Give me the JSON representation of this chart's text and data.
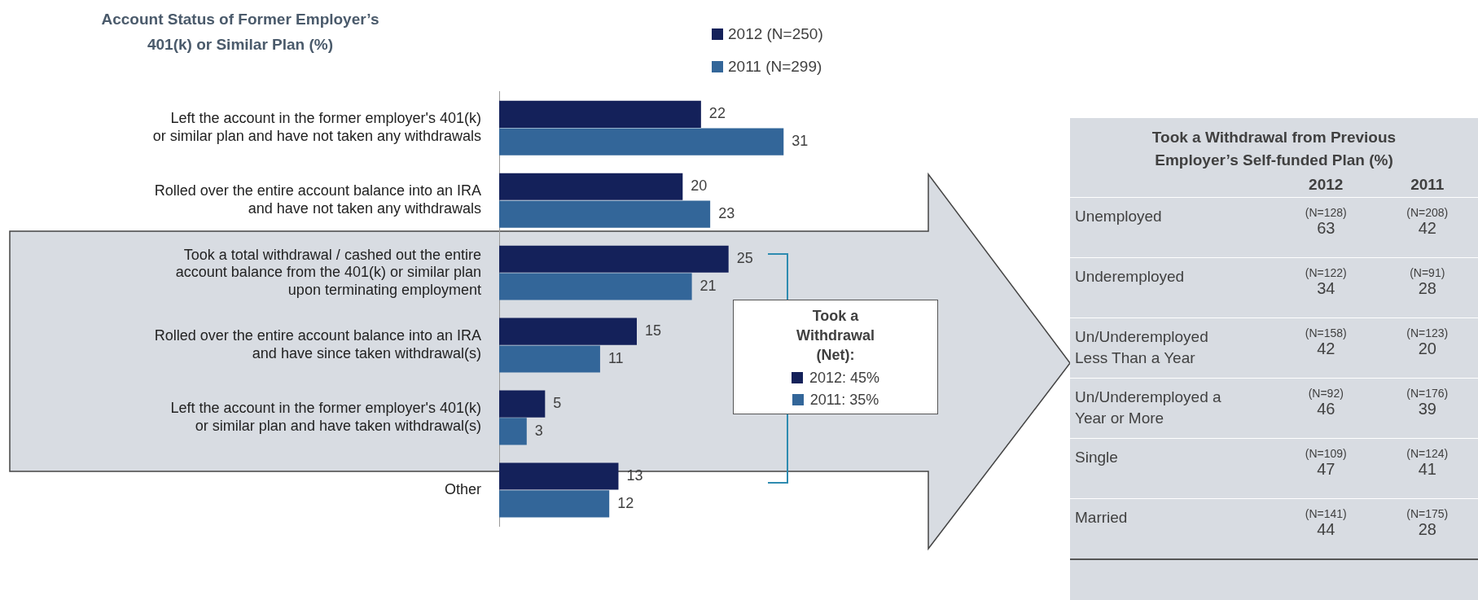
{
  "chart_data": [
    {
      "type": "bar",
      "orientation": "horizontal",
      "title": "Account Status of Former Employer’s 401(k) or Similar Plan (%)",
      "legend": "top",
      "data_labels": true,
      "categories": [
        "Left the account in the former employer's 401(k) or similar plan and have not taken any withdrawals",
        "Rolled over the entire account balance into an IRA and have not taken any withdrawals",
        "Took a total withdrawal / cashed out the entire account balance from the 401(k) or similar plan upon terminating employment",
        "Rolled over the entire account balance into an IRA and have since taken withdrawal(s)",
        "Left the account in the former employer's 401(k) or similar plan and have taken withdrawal(s)",
        "Other"
      ],
      "series": [
        {
          "name": "2012 (N=250)",
          "color": "#14215a",
          "values": [
            22,
            20,
            25,
            15,
            5,
            13
          ]
        },
        {
          "name": "2011 (N=299)",
          "color": "#336699",
          "values": [
            31,
            23,
            21,
            11,
            3,
            12
          ]
        }
      ],
      "annotations": [
        "Took a Withdrawal (Net):",
        "2012: 45%",
        "2011: 35%"
      ]
    },
    {
      "type": "other",
      "title": "Took a Withdrawal from Previous Employer’s Self-funded Plan (%)",
      "data_labels": true,
      "categories": [
        "Unemployed",
        "Underemployed",
        "Un/Underemployed Less Than a Year",
        "Un/Underemployed a Year or More",
        "Single",
        "Married"
      ],
      "series": [
        {
          "name": "2012",
          "values": [
            63,
            34,
            42,
            46,
            47,
            44
          ]
        },
        {
          "name": "2011",
          "values": [
            42,
            28,
            20,
            39,
            41,
            28
          ]
        }
      ],
      "annotations": [
        "(N=128)",
        "(N=208)",
        "(N=122)",
        "(N=91)",
        "(N=158)",
        "(N=123)",
        "(N=92)",
        "(N=176)",
        "(N=109)",
        "(N=124)",
        "(N=141)",
        "(N=175)"
      ]
    }
  ]
}
